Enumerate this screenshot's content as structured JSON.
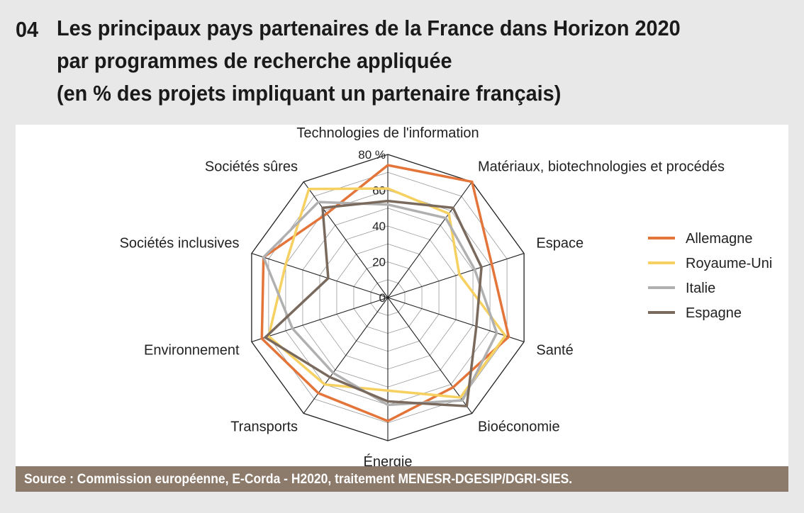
{
  "header": {
    "number": "04",
    "title_lines": [
      "Les principaux pays partenaires de la France dans Horizon 2020",
      "par programmes de recherche appliquée",
      "(en % des projets impliquant un partenaire français)"
    ]
  },
  "source": "Source : Commission européenne, E-Corda - H2020, traitement MENESR-DGESIP/DGRI-SIES.",
  "chart_data": {
    "type": "radar",
    "axes": [
      "Technologies de l'information",
      "Matériaux, biotechnologies et procédés",
      "Espace",
      "Santé",
      "Bioéconomie",
      "Énergie",
      "Transports",
      "Environnement",
      "Sociétés inclusives",
      "Sociétés sûres"
    ],
    "radial_ticks": [
      "0",
      "20",
      "40",
      "60",
      "80 %"
    ],
    "range": [
      0,
      80
    ],
    "grid_step": 10,
    "legend_position": "right",
    "series": [
      {
        "name": "Allemagne",
        "color": "#e3753a",
        "values": [
          74,
          80,
          61,
          71,
          62,
          69,
          66,
          74,
          73,
          58
        ]
      },
      {
        "name": "Royaume-Uni",
        "color": "#f6d060",
        "values": [
          61,
          58,
          42,
          69,
          69,
          52,
          60,
          70,
          60,
          75
        ]
      },
      {
        "name": "Italie",
        "color": "#b0b0b0",
        "values": [
          52,
          55,
          51,
          64,
          71,
          60,
          52,
          56,
          73,
          66
        ]
      },
      {
        "name": "Espagne",
        "color": "#7a6a5e",
        "values": [
          54,
          62,
          55,
          52,
          75,
          58,
          55,
          72,
          35,
          62
        ]
      }
    ]
  }
}
